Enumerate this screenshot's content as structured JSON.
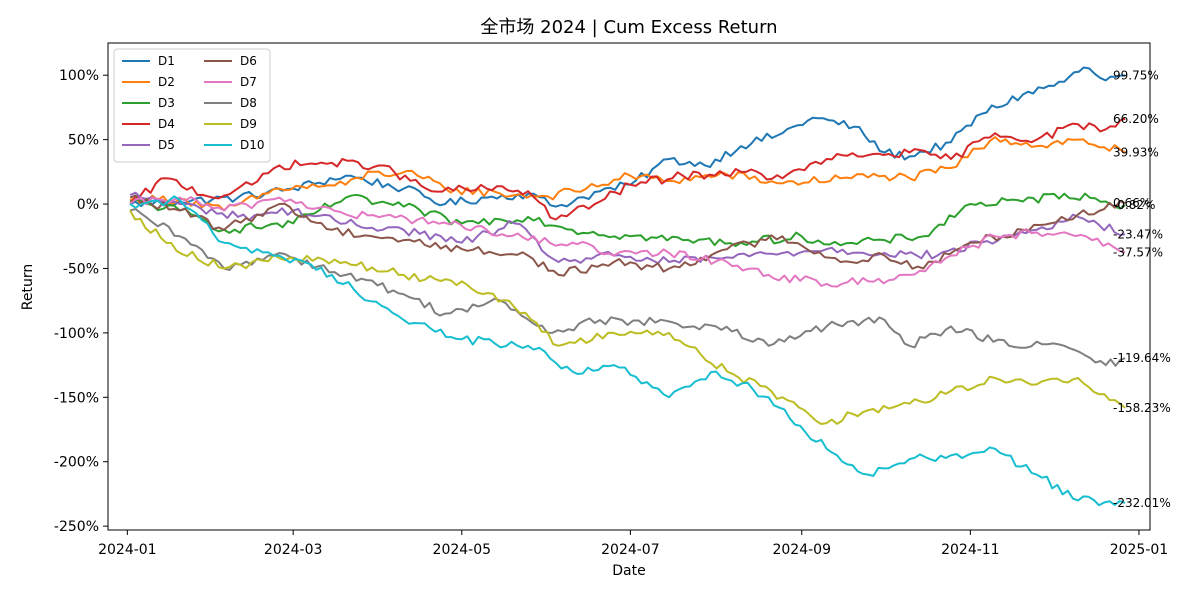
{
  "chart_data": {
    "type": "line",
    "title": "全市场 2024 | Cum Excess Return",
    "xlabel": "Date",
    "ylabel": "Return",
    "x_start": "2024-01-02",
    "x_end": "2024-12-27",
    "x_ticks": [
      "2024-01",
      "2024-03",
      "2024-05",
      "2024-07",
      "2024-09",
      "2024-11",
      "2025-01"
    ],
    "y_ticks": [
      100,
      50,
      0,
      -50,
      -100,
      -150,
      -200,
      -250
    ],
    "y_tick_labels": [
      "100%",
      "50%",
      "0%",
      "-50%",
      "-100%",
      "-150%",
      "-200%",
      "-250%"
    ],
    "ylim": [
      -253,
      125
    ],
    "xlim": [
      "2023-12-25",
      "2025-01-05"
    ],
    "legend_position": "upper-left",
    "legend_columns": 2,
    "grid": false,
    "series": [
      {
        "name": "D1",
        "color": "#1f77b4",
        "end_label": "99.75%",
        "points": [
          [
            "2024-01-02",
            0
          ],
          [
            "2024-01-20",
            2
          ],
          [
            "2024-02-10",
            5
          ],
          [
            "2024-03-01",
            12
          ],
          [
            "2024-03-20",
            22
          ],
          [
            "2024-04-10",
            12
          ],
          [
            "2024-04-25",
            0
          ],
          [
            "2024-05-10",
            5
          ],
          [
            "2024-05-25",
            8
          ],
          [
            "2024-06-04",
            -2
          ],
          [
            "2024-06-20",
            10
          ],
          [
            "2024-07-01",
            15
          ],
          [
            "2024-07-15",
            35
          ],
          [
            "2024-07-28",
            30
          ],
          [
            "2024-08-10",
            45
          ],
          [
            "2024-08-25",
            55
          ],
          [
            "2024-09-05",
            67
          ],
          [
            "2024-09-20",
            60
          ],
          [
            "2024-10-01",
            40
          ],
          [
            "2024-10-10",
            37
          ],
          [
            "2024-10-25",
            48
          ],
          [
            "2024-11-05",
            70
          ],
          [
            "2024-11-20",
            85
          ],
          [
            "2024-12-05",
            95
          ],
          [
            "2024-12-12",
            106
          ],
          [
            "2024-12-20",
            96
          ],
          [
            "2024-12-27",
            99.75
          ]
        ]
      },
      {
        "name": "D2",
        "color": "#ff7f0e",
        "end_label": "39.93%",
        "points": [
          [
            "2024-01-02",
            3
          ],
          [
            "2024-01-20",
            4
          ],
          [
            "2024-02-05",
            -5
          ],
          [
            "2024-02-25",
            12
          ],
          [
            "2024-03-20",
            15
          ],
          [
            "2024-03-30",
            25
          ],
          [
            "2024-04-15",
            22
          ],
          [
            "2024-04-25",
            12
          ],
          [
            "2024-05-15",
            8
          ],
          [
            "2024-06-01",
            6
          ],
          [
            "2024-06-15",
            12
          ],
          [
            "2024-07-01",
            22
          ],
          [
            "2024-07-15",
            18
          ],
          [
            "2024-08-05",
            23
          ],
          [
            "2024-08-25",
            16
          ],
          [
            "2024-09-15",
            20
          ],
          [
            "2024-10-01",
            22
          ],
          [
            "2024-10-10",
            20
          ],
          [
            "2024-10-25",
            28
          ],
          [
            "2024-11-10",
            52
          ],
          [
            "2024-11-25",
            45
          ],
          [
            "2024-12-10",
            50
          ],
          [
            "2024-12-27",
            39.93
          ]
        ]
      },
      {
        "name": "D3",
        "color": "#2ca02c",
        "end_label": "-0.82%",
        "points": [
          [
            "2024-01-02",
            2
          ],
          [
            "2024-01-20",
            -5
          ],
          [
            "2024-02-05",
            -20
          ],
          [
            "2024-03-01",
            -15
          ],
          [
            "2024-03-20",
            5
          ],
          [
            "2024-04-10",
            -2
          ],
          [
            "2024-05-01",
            -15
          ],
          [
            "2024-05-25",
            -10
          ],
          [
            "2024-06-10",
            -20
          ],
          [
            "2024-07-01",
            -25
          ],
          [
            "2024-07-20",
            -28
          ],
          [
            "2024-08-10",
            -30
          ],
          [
            "2024-09-01",
            -25
          ],
          [
            "2024-09-15",
            -32
          ],
          [
            "2024-10-01",
            -28
          ],
          [
            "2024-10-15",
            -25
          ],
          [
            "2024-11-01",
            0
          ],
          [
            "2024-11-20",
            2
          ],
          [
            "2024-12-05",
            8
          ],
          [
            "2024-12-20",
            2
          ],
          [
            "2024-12-27",
            -0.82
          ]
        ]
      },
      {
        "name": "D4",
        "color": "#d62728",
        "end_label": "66.20%",
        "points": [
          [
            "2024-01-02",
            0
          ],
          [
            "2024-01-15",
            20
          ],
          [
            "2024-02-01",
            5
          ],
          [
            "2024-02-15",
            15
          ],
          [
            "2024-02-25",
            30
          ],
          [
            "2024-03-15",
            32
          ],
          [
            "2024-04-01",
            30
          ],
          [
            "2024-04-20",
            10
          ],
          [
            "2024-05-10",
            12
          ],
          [
            "2024-05-25",
            10
          ],
          [
            "2024-06-04",
            -12
          ],
          [
            "2024-06-20",
            2
          ],
          [
            "2024-07-01",
            15
          ],
          [
            "2024-07-20",
            22
          ],
          [
            "2024-08-10",
            25
          ],
          [
            "2024-08-25",
            20
          ],
          [
            "2024-09-10",
            35
          ],
          [
            "2024-09-25",
            38
          ],
          [
            "2024-10-10",
            40
          ],
          [
            "2024-10-25",
            35
          ],
          [
            "2024-11-10",
            55
          ],
          [
            "2024-11-25",
            50
          ],
          [
            "2024-12-10",
            62
          ],
          [
            "2024-12-20",
            58
          ],
          [
            "2024-12-27",
            66.2
          ]
        ]
      },
      {
        "name": "D5",
        "color": "#9467bd",
        "end_label": "-23.47%",
        "points": [
          [
            "2024-01-02",
            7
          ],
          [
            "2024-01-20",
            0
          ],
          [
            "2024-02-10",
            -10
          ],
          [
            "2024-03-01",
            -5
          ],
          [
            "2024-03-20",
            -15
          ],
          [
            "2024-04-10",
            -20
          ],
          [
            "2024-05-01",
            -30
          ],
          [
            "2024-05-20",
            -15
          ],
          [
            "2024-06-05",
            -45
          ],
          [
            "2024-06-25",
            -40
          ],
          [
            "2024-07-15",
            -45
          ],
          [
            "2024-08-01",
            -42
          ],
          [
            "2024-08-25",
            -38
          ],
          [
            "2024-09-10",
            -35
          ],
          [
            "2024-10-01",
            -38
          ],
          [
            "2024-10-20",
            -40
          ],
          [
            "2024-11-05",
            -30
          ],
          [
            "2024-11-25",
            -20
          ],
          [
            "2024-12-10",
            -10
          ],
          [
            "2024-12-27",
            -23.47
          ]
        ]
      },
      {
        "name": "D6",
        "color": "#8c564b",
        "end_label": "0.66%",
        "points": [
          [
            "2024-01-02",
            5
          ],
          [
            "2024-01-20",
            -5
          ],
          [
            "2024-02-05",
            -20
          ],
          [
            "2024-02-25",
            0
          ],
          [
            "2024-03-15",
            -20
          ],
          [
            "2024-04-10",
            -28
          ],
          [
            "2024-05-01",
            -35
          ],
          [
            "2024-05-25",
            -40
          ],
          [
            "2024-06-05",
            -55
          ],
          [
            "2024-06-25",
            -45
          ],
          [
            "2024-07-15",
            -50
          ],
          [
            "2024-08-05",
            -35
          ],
          [
            "2024-08-25",
            -25
          ],
          [
            "2024-09-15",
            -45
          ],
          [
            "2024-10-01",
            -40
          ],
          [
            "2024-10-15",
            -50
          ],
          [
            "2024-11-01",
            -30
          ],
          [
            "2024-11-20",
            -20
          ],
          [
            "2024-12-10",
            -8
          ],
          [
            "2024-12-27",
            0.66
          ]
        ]
      },
      {
        "name": "D7",
        "color": "#e377c2",
        "end_label": "-37.57%",
        "points": [
          [
            "2024-01-02",
            0
          ],
          [
            "2024-01-20",
            5
          ],
          [
            "2024-02-05",
            -5
          ],
          [
            "2024-02-25",
            5
          ],
          [
            "2024-03-20",
            -8
          ],
          [
            "2024-04-15",
            -12
          ],
          [
            "2024-05-10",
            -20
          ],
          [
            "2024-05-25",
            -28
          ],
          [
            "2024-06-10",
            -30
          ],
          [
            "2024-06-25",
            -40
          ],
          [
            "2024-07-15",
            -38
          ],
          [
            "2024-08-05",
            -45
          ],
          [
            "2024-08-20",
            -55
          ],
          [
            "2024-09-10",
            -62
          ],
          [
            "2024-09-25",
            -60
          ],
          [
            "2024-10-10",
            -55
          ],
          [
            "2024-10-25",
            -40
          ],
          [
            "2024-11-10",
            -25
          ],
          [
            "2024-11-25",
            -22
          ],
          [
            "2024-12-15",
            -28
          ],
          [
            "2024-12-27",
            -37.57
          ]
        ]
      },
      {
        "name": "D8",
        "color": "#7f7f7f",
        "end_label": "-119.64%",
        "points": [
          [
            "2024-01-02",
            -5
          ],
          [
            "2024-01-20",
            -25
          ],
          [
            "2024-02-05",
            -50
          ],
          [
            "2024-02-25",
            -38
          ],
          [
            "2024-03-20",
            -55
          ],
          [
            "2024-04-10",
            -70
          ],
          [
            "2024-04-25",
            -85
          ],
          [
            "2024-05-15",
            -75
          ],
          [
            "2024-06-01",
            -100
          ],
          [
            "2024-06-20",
            -90
          ],
          [
            "2024-07-10",
            -92
          ],
          [
            "2024-08-01",
            -95
          ],
          [
            "2024-08-20",
            -110
          ],
          [
            "2024-09-10",
            -95
          ],
          [
            "2024-10-01",
            -90
          ],
          [
            "2024-10-10",
            -110
          ],
          [
            "2024-10-25",
            -95
          ],
          [
            "2024-11-15",
            -110
          ],
          [
            "2024-12-05",
            -110
          ],
          [
            "2024-12-20",
            -125
          ],
          [
            "2024-12-27",
            -119.64
          ]
        ]
      },
      {
        "name": "D9",
        "color": "#bcbd22",
        "end_label": "-158.23%",
        "points": [
          [
            "2024-01-02",
            -5
          ],
          [
            "2024-01-15",
            -30
          ],
          [
            "2024-02-05",
            -50
          ],
          [
            "2024-02-25",
            -42
          ],
          [
            "2024-03-20",
            -45
          ],
          [
            "2024-04-10",
            -55
          ],
          [
            "2024-05-01",
            -60
          ],
          [
            "2024-05-20",
            -80
          ],
          [
            "2024-06-05",
            -110
          ],
          [
            "2024-06-25",
            -100
          ],
          [
            "2024-07-15",
            -100
          ],
          [
            "2024-08-05",
            -130
          ],
          [
            "2024-08-25",
            -150
          ],
          [
            "2024-09-10",
            -170
          ],
          [
            "2024-09-25",
            -160
          ],
          [
            "2024-10-10",
            -155
          ],
          [
            "2024-10-25",
            -145
          ],
          [
            "2024-11-10",
            -135
          ],
          [
            "2024-11-25",
            -140
          ],
          [
            "2024-12-10",
            -135
          ],
          [
            "2024-12-27",
            -158.23
          ]
        ]
      },
      {
        "name": "D10",
        "color": "#17becf",
        "end_label": "-232.01%",
        "points": [
          [
            "2024-01-02",
            0
          ],
          [
            "2024-01-20",
            3
          ],
          [
            "2024-02-05",
            -30
          ],
          [
            "2024-02-25",
            -40
          ],
          [
            "2024-03-15",
            -55
          ],
          [
            "2024-04-10",
            -90
          ],
          [
            "2024-05-01",
            -105
          ],
          [
            "2024-05-25",
            -110
          ],
          [
            "2024-06-10",
            -130
          ],
          [
            "2024-06-25",
            -125
          ],
          [
            "2024-07-15",
            -150
          ],
          [
            "2024-08-01",
            -130
          ],
          [
            "2024-08-20",
            -150
          ],
          [
            "2024-09-10",
            -190
          ],
          [
            "2024-09-25",
            -210
          ],
          [
            "2024-10-10",
            -198
          ],
          [
            "2024-10-25",
            -195
          ],
          [
            "2024-11-10",
            -190
          ],
          [
            "2024-11-25",
            -210
          ],
          [
            "2024-12-10",
            -230
          ],
          [
            "2024-12-27",
            -232.01
          ]
        ]
      }
    ]
  }
}
